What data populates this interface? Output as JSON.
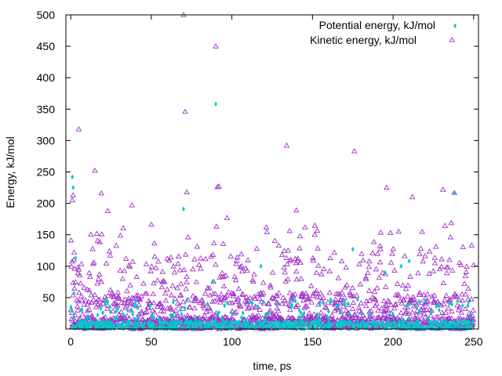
{
  "chart_data": {
    "type": "scatter",
    "title": "",
    "xlabel": "time, ps",
    "ylabel": "Energy, kJ/mol",
    "xlim": [
      -3,
      253
    ],
    "ylim": [
      0,
      500
    ],
    "x_ticks": [
      0,
      50,
      100,
      150,
      200,
      250
    ],
    "y_ticks": [
      50,
      100,
      150,
      200,
      250,
      300,
      350,
      400,
      450,
      500
    ],
    "grid": false,
    "legend_position": "top-right",
    "series": [
      {
        "name": "Potential energy, kJ/mol",
        "marker": "diamond",
        "color": "#00c8c8",
        "x": [
          1,
          1.5,
          2,
          3,
          10,
          22,
          24,
          32,
          42,
          50,
          55,
          60,
          62,
          65,
          68,
          70,
          72,
          75,
          80,
          88,
          90,
          95,
          100,
          105,
          115,
          118,
          120,
          125,
          128,
          135,
          140,
          150,
          155,
          160,
          165,
          170,
          172,
          175,
          178,
          180,
          185,
          190,
          195,
          200,
          203,
          205,
          210,
          215,
          220,
          225,
          228,
          232,
          235,
          238,
          240,
          245,
          248
        ],
        "y": [
          242,
          225,
          57,
          113,
          18,
          5,
          12,
          8,
          20,
          6,
          14,
          9,
          22,
          10,
          30,
          191,
          15,
          11,
          8,
          75,
          358,
          12,
          25,
          9,
          7,
          100,
          14,
          8,
          40,
          6,
          11,
          10,
          14,
          28,
          9,
          45,
          8,
          127,
          12,
          9,
          22,
          7,
          90,
          24,
          8,
          100,
          108,
          12,
          45,
          10,
          38,
          7,
          40,
          217,
          45,
          9,
          20
        ]
      },
      {
        "name": "Kinetic energy, kJ/mol",
        "marker": "triangle",
        "color": "#9f30c8",
        "outliers_x": [
          1,
          1.5,
          2,
          5,
          15,
          19,
          23,
          38,
          70,
          71,
          72,
          90,
          91,
          92,
          97,
          134,
          140,
          176,
          196,
          212,
          231,
          235,
          238
        ],
        "outliers_y": [
          205,
          213,
          110,
          318,
          252,
          216,
          188,
          197,
          500,
          346,
          218,
          450,
          226,
          227,
          177,
          292,
          189,
          283,
          225,
          210,
          222,
          110,
          217
        ]
      }
    ]
  }
}
